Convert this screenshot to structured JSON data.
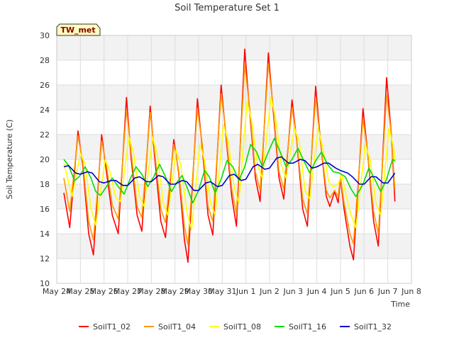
{
  "chart_data": {
    "type": "line",
    "title": "Soil Temperature Set 1",
    "xlabel": "Time",
    "ylabel": "Soil Temperature (C)",
    "tag": "TW_met",
    "ylim": [
      10,
      30
    ],
    "yticks": [
      10,
      12,
      14,
      16,
      18,
      20,
      22,
      24,
      26,
      28,
      30
    ],
    "xlim": [
      0,
      15
    ],
    "xticks": [
      {
        "x": 0,
        "label": "May 24"
      },
      {
        "x": 1,
        "label": "May 25"
      },
      {
        "x": 2,
        "label": "May 26"
      },
      {
        "x": 3,
        "label": "May 27"
      },
      {
        "x": 4,
        "label": "May 28"
      },
      {
        "x": 5,
        "label": "May 29"
      },
      {
        "x": 6,
        "label": "May 30"
      },
      {
        "x": 7,
        "label": "May 31"
      },
      {
        "x": 8,
        "label": "Jun 1"
      },
      {
        "x": 9,
        "label": "Jun 2"
      },
      {
        "x": 10,
        "label": "Jun 3"
      },
      {
        "x": 11,
        "label": "Jun 4"
      },
      {
        "x": 12,
        "label": "Jun 5"
      },
      {
        "x": 13,
        "label": "Jun 6"
      },
      {
        "x": 14,
        "label": "Jun 7"
      },
      {
        "x": 15,
        "label": "Jun 8"
      }
    ],
    "grid": true,
    "legend_position": "bottom",
    "series": [
      {
        "name": "SoilT1_02",
        "color": "#ff0000",
        "points": [
          [
            0.3,
            17.3
          ],
          [
            0.55,
            14.5
          ],
          [
            0.9,
            22.3
          ],
          [
            1.1,
            19.5
          ],
          [
            1.35,
            14.0
          ],
          [
            1.55,
            12.3
          ],
          [
            1.9,
            22.0
          ],
          [
            2.1,
            19.0
          ],
          [
            2.35,
            15.5
          ],
          [
            2.6,
            14.0
          ],
          [
            2.95,
            25.0
          ],
          [
            3.15,
            20.0
          ],
          [
            3.4,
            15.5
          ],
          [
            3.6,
            14.2
          ],
          [
            3.95,
            24.3
          ],
          [
            4.15,
            20.0
          ],
          [
            4.4,
            15.0
          ],
          [
            4.6,
            13.7
          ],
          [
            4.95,
            21.6
          ],
          [
            5.15,
            19.0
          ],
          [
            5.4,
            13.5
          ],
          [
            5.55,
            11.7
          ],
          [
            5.95,
            24.9
          ],
          [
            6.15,
            21.0
          ],
          [
            6.4,
            15.5
          ],
          [
            6.6,
            13.9
          ],
          [
            6.95,
            26.0
          ],
          [
            7.15,
            22.0
          ],
          [
            7.4,
            17.0
          ],
          [
            7.6,
            14.6
          ],
          [
            7.95,
            28.9
          ],
          [
            8.15,
            24.0
          ],
          [
            8.4,
            18.5
          ],
          [
            8.6,
            16.6
          ],
          [
            8.95,
            28.6
          ],
          [
            9.15,
            24.0
          ],
          [
            9.4,
            18.5
          ],
          [
            9.6,
            16.8
          ],
          [
            9.95,
            24.8
          ],
          [
            10.15,
            21.5
          ],
          [
            10.4,
            16.0
          ],
          [
            10.6,
            14.6
          ],
          [
            10.95,
            25.9
          ],
          [
            11.15,
            21.5
          ],
          [
            11.4,
            17.0
          ],
          [
            11.55,
            16.2
          ],
          [
            11.75,
            17.4
          ],
          [
            11.9,
            16.5
          ],
          [
            12.0,
            18.5
          ],
          [
            12.15,
            16.0
          ],
          [
            12.4,
            13.0
          ],
          [
            12.55,
            11.9
          ],
          [
            12.95,
            24.1
          ],
          [
            13.15,
            20.5
          ],
          [
            13.4,
            15.0
          ],
          [
            13.6,
            13.0
          ],
          [
            13.95,
            26.6
          ],
          [
            14.15,
            22.0
          ],
          [
            14.3,
            16.6
          ]
        ]
      },
      {
        "name": "SoilT1_04",
        "color": "#ff9900",
        "points": [
          [
            0.3,
            18.5
          ],
          [
            0.55,
            15.8
          ],
          [
            0.9,
            21.9
          ],
          [
            1.1,
            19.8
          ],
          [
            1.35,
            15.0
          ],
          [
            1.55,
            13.5
          ],
          [
            1.9,
            21.5
          ],
          [
            2.1,
            19.5
          ],
          [
            2.35,
            16.3
          ],
          [
            2.6,
            15.2
          ],
          [
            2.95,
            24.0
          ],
          [
            3.15,
            20.5
          ],
          [
            3.4,
            16.2
          ],
          [
            3.6,
            15.3
          ],
          [
            3.95,
            23.8
          ],
          [
            4.15,
            20.5
          ],
          [
            4.4,
            16.0
          ],
          [
            4.6,
            14.9
          ],
          [
            4.95,
            21.2
          ],
          [
            5.15,
            19.2
          ],
          [
            5.4,
            14.6
          ],
          [
            5.55,
            13.1
          ],
          [
            5.95,
            24.1
          ],
          [
            6.15,
            21.3
          ],
          [
            6.4,
            16.2
          ],
          [
            6.6,
            15.0
          ],
          [
            6.95,
            25.3
          ],
          [
            7.15,
            22.3
          ],
          [
            7.4,
            17.6
          ],
          [
            7.6,
            15.6
          ],
          [
            7.95,
            27.6
          ],
          [
            8.15,
            24.3
          ],
          [
            8.4,
            19.0
          ],
          [
            8.6,
            17.5
          ],
          [
            8.95,
            27.7
          ],
          [
            9.15,
            24.3
          ],
          [
            9.4,
            19.0
          ],
          [
            9.6,
            17.6
          ],
          [
            9.95,
            24.2
          ],
          [
            10.15,
            21.6
          ],
          [
            10.4,
            16.8
          ],
          [
            10.6,
            15.6
          ],
          [
            10.95,
            25.0
          ],
          [
            11.15,
            21.5
          ],
          [
            11.4,
            17.5
          ],
          [
            11.55,
            16.9
          ],
          [
            11.75,
            17.5
          ],
          [
            11.9,
            17.0
          ],
          [
            12.0,
            18.6
          ],
          [
            12.15,
            16.5
          ],
          [
            12.4,
            14.0
          ],
          [
            12.55,
            13.2
          ],
          [
            12.95,
            23.3
          ],
          [
            13.15,
            20.5
          ],
          [
            13.4,
            15.8
          ],
          [
            13.6,
            14.0
          ],
          [
            13.95,
            25.2
          ],
          [
            14.15,
            22.0
          ],
          [
            14.3,
            17.5
          ]
        ]
      },
      {
        "name": "SoilT1_08",
        "color": "#ffff00",
        "points": [
          [
            0.3,
            19.7
          ],
          [
            0.65,
            17.0
          ],
          [
            1.0,
            20.5
          ],
          [
            1.2,
            19.6
          ],
          [
            1.45,
            16.0
          ],
          [
            1.65,
            14.7
          ],
          [
            2.05,
            20.0
          ],
          [
            2.25,
            19.0
          ],
          [
            2.5,
            16.9
          ],
          [
            2.7,
            16.6
          ],
          [
            3.05,
            21.8
          ],
          [
            3.25,
            20.5
          ],
          [
            3.5,
            17.0
          ],
          [
            3.7,
            16.2
          ],
          [
            4.05,
            21.8
          ],
          [
            4.25,
            20.5
          ],
          [
            4.5,
            16.5
          ],
          [
            4.7,
            15.5
          ],
          [
            5.05,
            20.8
          ],
          [
            5.25,
            19.5
          ],
          [
            5.5,
            15.8
          ],
          [
            5.7,
            14.3
          ],
          [
            6.05,
            21.2
          ],
          [
            6.25,
            20.0
          ],
          [
            6.5,
            16.5
          ],
          [
            6.7,
            15.5
          ],
          [
            7.05,
            22.8
          ],
          [
            7.25,
            21.5
          ],
          [
            7.5,
            17.8
          ],
          [
            7.7,
            16.5
          ],
          [
            8.05,
            24.7
          ],
          [
            8.25,
            23.0
          ],
          [
            8.5,
            19.5
          ],
          [
            8.7,
            18.5
          ],
          [
            9.05,
            25.0
          ],
          [
            9.25,
            23.5
          ],
          [
            9.5,
            19.5
          ],
          [
            9.7,
            18.5
          ],
          [
            10.05,
            22.5
          ],
          [
            10.25,
            21.5
          ],
          [
            10.5,
            17.5
          ],
          [
            10.7,
            16.8
          ],
          [
            11.05,
            22.5
          ],
          [
            11.25,
            21.0
          ],
          [
            11.5,
            18.2
          ],
          [
            11.7,
            17.8
          ],
          [
            11.9,
            18.0
          ],
          [
            12.05,
            18.8
          ],
          [
            12.25,
            17.0
          ],
          [
            12.45,
            15.5
          ],
          [
            12.65,
            14.5
          ],
          [
            13.05,
            21.2
          ],
          [
            13.25,
            20.0
          ],
          [
            13.5,
            16.5
          ],
          [
            13.7,
            15.5
          ],
          [
            14.05,
            22.5
          ],
          [
            14.25,
            21.0
          ],
          [
            14.3,
            19.8
          ]
        ]
      },
      {
        "name": "SoilT1_16",
        "color": "#00dd00",
        "points": [
          [
            0.3,
            20.0
          ],
          [
            0.5,
            19.5
          ],
          [
            0.75,
            18.3
          ],
          [
            0.95,
            18.6
          ],
          [
            1.2,
            19.4
          ],
          [
            1.45,
            18.5
          ],
          [
            1.65,
            17.4
          ],
          [
            1.85,
            17.1
          ],
          [
            2.1,
            17.8
          ],
          [
            2.35,
            18.5
          ],
          [
            2.6,
            17.8
          ],
          [
            2.85,
            17.2
          ],
          [
            3.1,
            18.4
          ],
          [
            3.35,
            19.4
          ],
          [
            3.6,
            18.8
          ],
          [
            3.85,
            17.8
          ],
          [
            4.1,
            18.6
          ],
          [
            4.35,
            19.6
          ],
          [
            4.6,
            18.6
          ],
          [
            4.85,
            17.4
          ],
          [
            5.1,
            18.2
          ],
          [
            5.3,
            18.7
          ],
          [
            5.5,
            17.8
          ],
          [
            5.75,
            16.5
          ],
          [
            6.0,
            17.5
          ],
          [
            6.25,
            19.1
          ],
          [
            6.45,
            18.6
          ],
          [
            6.7,
            17.3
          ],
          [
            6.95,
            18.4
          ],
          [
            7.2,
            19.9
          ],
          [
            7.45,
            19.4
          ],
          [
            7.7,
            18.3
          ],
          [
            7.95,
            19.4
          ],
          [
            8.2,
            21.2
          ],
          [
            8.45,
            20.6
          ],
          [
            8.7,
            19.4
          ],
          [
            8.95,
            20.6
          ],
          [
            9.2,
            21.7
          ],
          [
            9.45,
            20.6
          ],
          [
            9.7,
            19.4
          ],
          [
            9.95,
            20.0
          ],
          [
            10.2,
            20.9
          ],
          [
            10.45,
            19.9
          ],
          [
            10.7,
            18.9
          ],
          [
            10.95,
            19.9
          ],
          [
            11.2,
            20.6
          ],
          [
            11.45,
            19.6
          ],
          [
            11.7,
            19.0
          ],
          [
            11.95,
            18.9
          ],
          [
            12.2,
            18.6
          ],
          [
            12.45,
            17.6
          ],
          [
            12.65,
            17.0
          ],
          [
            12.95,
            18.0
          ],
          [
            13.2,
            19.3
          ],
          [
            13.45,
            18.4
          ],
          [
            13.7,
            17.4
          ],
          [
            13.95,
            18.4
          ],
          [
            14.2,
            20.0
          ],
          [
            14.3,
            19.9
          ]
        ]
      },
      {
        "name": "SoilT1_32",
        "color": "#0000cc",
        "points": [
          [
            0.3,
            19.4
          ],
          [
            0.5,
            19.5
          ],
          [
            0.8,
            18.9
          ],
          [
            1.0,
            18.8
          ],
          [
            1.3,
            19.0
          ],
          [
            1.5,
            18.9
          ],
          [
            1.8,
            18.2
          ],
          [
            2.0,
            18.1
          ],
          [
            2.3,
            18.3
          ],
          [
            2.5,
            18.3
          ],
          [
            2.8,
            17.9
          ],
          [
            3.0,
            17.9
          ],
          [
            3.3,
            18.5
          ],
          [
            3.5,
            18.6
          ],
          [
            3.8,
            18.2
          ],
          [
            4.0,
            18.2
          ],
          [
            4.3,
            18.7
          ],
          [
            4.5,
            18.6
          ],
          [
            4.8,
            18.0
          ],
          [
            5.0,
            18.0
          ],
          [
            5.3,
            18.3
          ],
          [
            5.5,
            18.2
          ],
          [
            5.8,
            17.5
          ],
          [
            6.0,
            17.5
          ],
          [
            6.3,
            18.1
          ],
          [
            6.5,
            18.2
          ],
          [
            6.8,
            17.8
          ],
          [
            7.0,
            17.9
          ],
          [
            7.3,
            18.7
          ],
          [
            7.5,
            18.8
          ],
          [
            7.8,
            18.3
          ],
          [
            8.0,
            18.4
          ],
          [
            8.3,
            19.4
          ],
          [
            8.5,
            19.6
          ],
          [
            8.8,
            19.2
          ],
          [
            9.0,
            19.3
          ],
          [
            9.3,
            20.1
          ],
          [
            9.5,
            20.2
          ],
          [
            9.8,
            19.7
          ],
          [
            10.0,
            19.7
          ],
          [
            10.3,
            20.0
          ],
          [
            10.5,
            19.9
          ],
          [
            10.8,
            19.3
          ],
          [
            11.0,
            19.4
          ],
          [
            11.3,
            19.7
          ],
          [
            11.5,
            19.7
          ],
          [
            11.8,
            19.3
          ],
          [
            12.0,
            19.1
          ],
          [
            12.3,
            18.9
          ],
          [
            12.5,
            18.6
          ],
          [
            12.8,
            18.0
          ],
          [
            13.0,
            18.0
          ],
          [
            13.3,
            18.6
          ],
          [
            13.5,
            18.6
          ],
          [
            13.8,
            18.1
          ],
          [
            14.0,
            18.1
          ],
          [
            14.3,
            18.9
          ]
        ]
      }
    ]
  }
}
